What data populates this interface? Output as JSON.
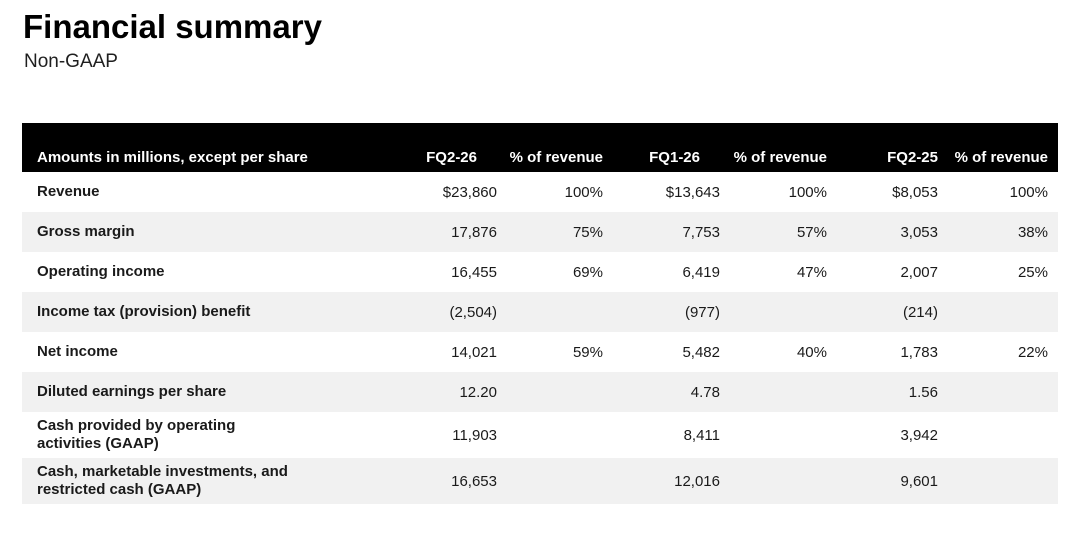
{
  "slide": {
    "title": "Financial summary",
    "subtitle": "Non-GAAP"
  },
  "table": {
    "columns": [
      "Amounts in millions, except per share",
      "FQ2-26",
      "% of revenue",
      "FQ1-26",
      "% of revenue",
      "FQ2-25",
      "% of revenue"
    ],
    "rows": [
      {
        "label": "Revenue",
        "values": [
          "$23,860",
          "100%",
          "$13,643",
          "100%",
          "$8,053",
          "100%"
        ]
      },
      {
        "label": "Gross margin",
        "values": [
          "17,876",
          "75%",
          "7,753",
          "57%",
          "3,053",
          "38%"
        ]
      },
      {
        "label": "Operating income",
        "values": [
          "16,455",
          "69%",
          "6,419",
          "47%",
          "2,007",
          "25%"
        ]
      },
      {
        "label": "Income tax (provision) benefit",
        "values": [
          "(2,504)",
          "",
          "(977)",
          "",
          "(214)",
          ""
        ]
      },
      {
        "label": "Net income",
        "values": [
          "14,021",
          "59%",
          "5,482",
          "40%",
          "1,783",
          "22%"
        ]
      },
      {
        "label": "Diluted earnings per share",
        "values": [
          "12.20",
          "",
          "4.78",
          "",
          "1.56",
          ""
        ]
      },
      {
        "label": "Cash provided by operating activities (GAAP)",
        "values": [
          "11,903",
          "",
          "8,411",
          "",
          "3,942",
          ""
        ]
      },
      {
        "label": "Cash, marketable investments, and restricted cash (GAAP)",
        "values": [
          "16,653",
          "",
          "12,016",
          "",
          "9,601",
          ""
        ]
      }
    ]
  },
  "colors": {
    "header_bg": "#000000",
    "header_text": "#ffffff",
    "row_alt_bg": "#f1f1f1",
    "body_text": "#1a1a1a"
  }
}
